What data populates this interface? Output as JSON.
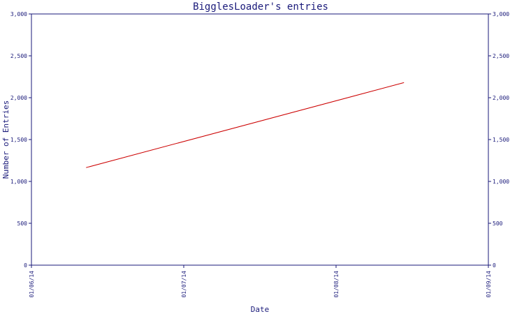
{
  "chart_data": {
    "type": "line",
    "title": "BigglesLoader's entries",
    "xlabel": "Date",
    "ylabel": "Number of Entries",
    "x_ticks": [
      "01/06/14",
      "01/07/14",
      "01/08/14",
      "01/09/14"
    ],
    "xlim": [
      "2014-06-01",
      "2014-09-01"
    ],
    "ylim": [
      0,
      3000
    ],
    "y_ticks": [
      0,
      500,
      1000,
      1500,
      2000,
      2500,
      3000
    ],
    "y_tick_labels": [
      "0",
      "500",
      "1,000",
      "1,500",
      "2,000",
      "2,500",
      "3,000"
    ],
    "grid": false,
    "legend": "none",
    "series": [
      {
        "color": "#cc0000",
        "x": [
          "2014-06-12",
          "2014-08-15"
        ],
        "y": [
          1165,
          2180
        ]
      }
    ]
  },
  "colors": {
    "axis": "#1a1a7a",
    "series": "#cc0000"
  }
}
